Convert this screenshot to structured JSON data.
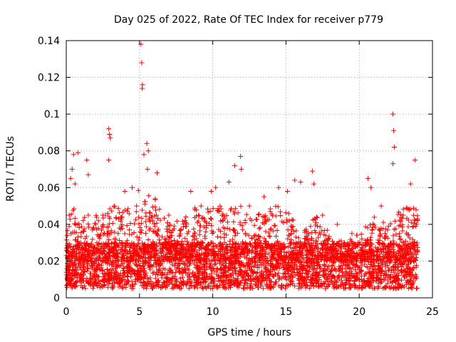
{
  "chart_data": {
    "type": "scatter",
    "title": "Day 025 of 2022, Rate Of TEC Index for receiver p779",
    "xlabel": "GPS time / hours",
    "ylabel": "ROTI / TECUs",
    "xlim": [
      0,
      25
    ],
    "ylim": [
      0,
      0.14
    ],
    "xticks": [
      "0",
      "5",
      "10",
      "15",
      "20",
      "25"
    ],
    "yticks": [
      "0",
      "0.02",
      "0.04",
      "0.06",
      "0.08",
      "0.1",
      "0.12",
      "0.14"
    ],
    "grid": true,
    "marker": "plus",
    "series_color": "#ff0000",
    "series": [
      {
        "name": "ROTI",
        "points": [
          [
            0.1,
            0.015
          ],
          [
            0.2,
            0.045
          ],
          [
            0.3,
            0.065
          ],
          [
            0.4,
            0.07
          ],
          [
            0.5,
            0.078
          ],
          [
            0.6,
            0.062
          ],
          [
            0.8,
            0.079
          ],
          [
            1.0,
            0.03
          ],
          [
            1.4,
            0.075
          ],
          [
            1.5,
            0.067
          ],
          [
            2.0,
            0.04
          ],
          [
            2.5,
            0.045
          ],
          [
            2.9,
            0.092
          ],
          [
            2.95,
            0.089
          ],
          [
            3.0,
            0.087
          ],
          [
            2.9,
            0.075
          ],
          [
            3.3,
            0.05
          ],
          [
            4.0,
            0.058
          ],
          [
            4.5,
            0.06
          ],
          [
            4.8,
            0.05
          ],
          [
            5.1,
            0.138
          ],
          [
            5.15,
            0.128
          ],
          [
            5.2,
            0.116
          ],
          [
            5.18,
            0.114
          ],
          [
            5.3,
            0.078
          ],
          [
            5.5,
            0.084
          ],
          [
            5.6,
            0.08
          ],
          [
            5.55,
            0.07
          ],
          [
            6.2,
            0.068
          ],
          [
            7.0,
            0.045
          ],
          [
            8.5,
            0.058
          ],
          [
            9.2,
            0.05
          ],
          [
            9.9,
            0.058
          ],
          [
            10.2,
            0.06
          ],
          [
            10.5,
            0.05
          ],
          [
            11.1,
            0.063
          ],
          [
            11.5,
            0.072
          ],
          [
            11.9,
            0.077
          ],
          [
            11.95,
            0.07
          ],
          [
            12.5,
            0.05
          ],
          [
            13.5,
            0.055
          ],
          [
            14.5,
            0.06
          ],
          [
            15.1,
            0.058
          ],
          [
            15.6,
            0.064
          ],
          [
            16.0,
            0.063
          ],
          [
            16.8,
            0.069
          ],
          [
            16.9,
            0.062
          ],
          [
            17.5,
            0.045
          ],
          [
            18.5,
            0.04
          ],
          [
            19.0,
            0.03
          ],
          [
            19.5,
            0.035
          ],
          [
            20.6,
            0.065
          ],
          [
            20.8,
            0.06
          ],
          [
            21.5,
            0.05
          ],
          [
            22.3,
            0.1
          ],
          [
            22.35,
            0.091
          ],
          [
            22.4,
            0.082
          ],
          [
            22.3,
            0.073
          ],
          [
            23.0,
            0.045
          ],
          [
            23.5,
            0.062
          ],
          [
            23.8,
            0.075
          ],
          [
            23.9,
            0.04
          ]
        ],
        "dense_band": {
          "note": "thousands of overlapping samples, 0-24 h",
          "x_range": [
            0,
            24
          ],
          "base_min": 0.005,
          "base_max": 0.03,
          "upper_envelope": [
            [
              0,
              0.04
            ],
            [
              0.5,
              0.05
            ],
            [
              1,
              0.045
            ],
            [
              2,
              0.045
            ],
            [
              3,
              0.05
            ],
            [
              4,
              0.05
            ],
            [
              5,
              0.06
            ],
            [
              6,
              0.055
            ],
            [
              7,
              0.04
            ],
            [
              8,
              0.045
            ],
            [
              9,
              0.05
            ],
            [
              10,
              0.05
            ],
            [
              11,
              0.05
            ],
            [
              12,
              0.05
            ],
            [
              13,
              0.045
            ],
            [
              14,
              0.05
            ],
            [
              15,
              0.05
            ],
            [
              16,
              0.035
            ],
            [
              17,
              0.045
            ],
            [
              18,
              0.035
            ],
            [
              19,
              0.03
            ],
            [
              20,
              0.035
            ],
            [
              21,
              0.045
            ],
            [
              22,
              0.04
            ],
            [
              23,
              0.05
            ],
            [
              24,
              0.05
            ]
          ]
        }
      }
    ]
  }
}
